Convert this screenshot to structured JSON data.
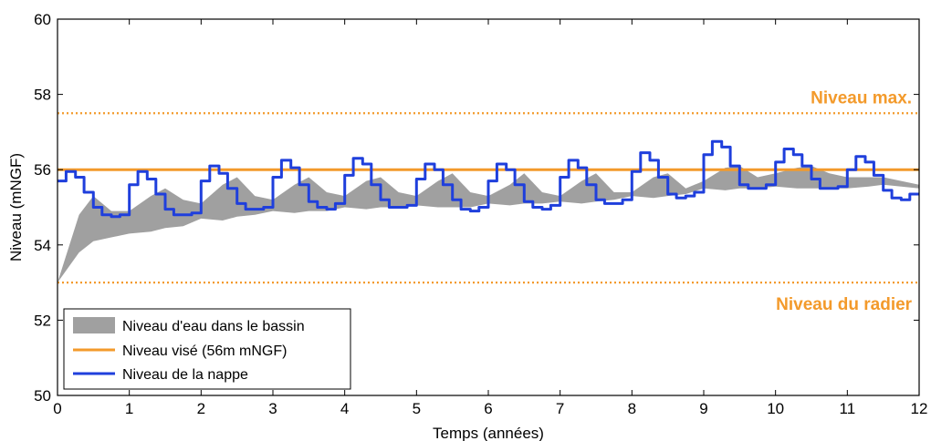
{
  "chart_data": {
    "type": "line",
    "xlabel": "Temps (années)",
    "ylabel": "Niveau (mNGF)",
    "xlim": [
      0,
      12
    ],
    "ylim": [
      50,
      60
    ],
    "xticks": [
      "0",
      "1",
      "2",
      "3",
      "4",
      "5",
      "6",
      "7",
      "8",
      "9",
      "10",
      "11",
      "12"
    ],
    "yticks": [
      "50",
      "52",
      "54",
      "56",
      "58",
      "60"
    ],
    "grid": false,
    "legend_position": "bottom-left",
    "colors": {
      "orange": "#f39a2b",
      "blue": "#1f3fdc",
      "gray": "#a0a0a0"
    },
    "annotations": [
      {
        "text": "Niveau max.",
        "x": 11.95,
        "y": 57.5
      },
      {
        "text": "Niveau du radier",
        "x": 11.95,
        "y": 53.0
      }
    ],
    "reference_lines": [
      {
        "name": "Niveau max.",
        "y": 57.5,
        "style": "dotted"
      },
      {
        "name": "Niveau du radier",
        "y": 53.0,
        "style": "dotted"
      }
    ],
    "series": [
      {
        "name": "Niveau d'eau dans le bassin",
        "type": "band",
        "x": [
          0,
          0.3,
          0.5,
          0.75,
          1,
          1.3,
          1.5,
          1.75,
          2,
          2.3,
          2.5,
          2.75,
          3,
          3.3,
          3.5,
          3.75,
          4,
          4.3,
          4.5,
          4.75,
          5,
          5.3,
          5.5,
          5.75,
          6,
          6.3,
          6.5,
          6.75,
          7,
          7.3,
          7.5,
          7.75,
          8,
          8.3,
          8.5,
          8.75,
          9,
          9.3,
          9.5,
          9.75,
          10,
          10.3,
          10.5,
          10.75,
          11,
          11.3,
          11.5,
          11.75,
          12
        ],
        "lower": [
          53.0,
          53.8,
          54.1,
          54.2,
          54.3,
          54.35,
          54.45,
          54.5,
          54.7,
          54.65,
          54.75,
          54.8,
          54.9,
          54.85,
          54.9,
          54.9,
          55.0,
          54.95,
          55.0,
          55.0,
          55.05,
          55.0,
          55.0,
          55.0,
          55.1,
          55.05,
          55.1,
          55.1,
          55.15,
          55.1,
          55.15,
          55.2,
          55.3,
          55.25,
          55.3,
          55.35,
          55.5,
          55.45,
          55.5,
          55.5,
          55.55,
          55.5,
          55.5,
          55.5,
          55.5,
          55.55,
          55.6,
          55.55,
          55.5
        ],
        "upper": [
          53.0,
          54.8,
          55.3,
          54.9,
          54.9,
          55.3,
          55.5,
          55.2,
          55.1,
          55.6,
          55.8,
          55.3,
          55.2,
          55.6,
          55.8,
          55.4,
          55.3,
          55.7,
          55.8,
          55.4,
          55.3,
          55.7,
          55.9,
          55.4,
          55.3,
          55.6,
          55.9,
          55.4,
          55.3,
          55.7,
          55.9,
          55.4,
          55.4,
          55.8,
          55.9,
          55.5,
          55.7,
          56.05,
          56.1,
          55.8,
          55.9,
          56.05,
          56.1,
          55.9,
          55.8,
          55.8,
          55.8,
          55.7,
          55.6
        ]
      },
      {
        "name": "Niveau visé (56m mNGF)",
        "type": "line",
        "x": [
          0,
          12
        ],
        "y": [
          56,
          56
        ]
      },
      {
        "name": "Niveau de la nappe",
        "type": "step-line",
        "x": [
          0,
          0.12,
          0.12,
          0.25,
          0.25,
          0.37,
          0.37,
          0.5,
          0.5,
          0.62,
          0.62,
          0.75,
          0.75,
          0.87,
          0.87,
          1.0,
          1.0,
          1.12,
          1.12,
          1.25,
          1.25,
          1.37,
          1.37,
          1.5,
          1.5,
          1.62,
          1.62,
          1.75,
          1.75,
          1.87,
          1.87,
          2.0,
          2.0,
          2.12,
          2.12,
          2.25,
          2.25,
          2.37,
          2.37,
          2.5,
          2.5,
          2.62,
          2.62,
          2.75,
          2.75,
          2.87,
          2.87,
          3.0,
          3.0,
          3.12,
          3.12,
          3.25,
          3.25,
          3.37,
          3.37,
          3.5,
          3.5,
          3.62,
          3.62,
          3.75,
          3.75,
          3.87,
          3.87,
          4.0,
          4.0,
          4.12,
          4.12,
          4.25,
          4.25,
          4.37,
          4.37,
          4.5,
          4.5,
          4.62,
          4.62,
          4.75,
          4.75,
          4.87,
          4.87,
          5.0,
          5.0,
          5.12,
          5.12,
          5.25,
          5.25,
          5.37,
          5.37,
          5.5,
          5.5,
          5.62,
          5.62,
          5.75,
          5.75,
          5.87,
          5.87,
          6.0,
          6.0,
          6.12,
          6.12,
          6.25,
          6.25,
          6.37,
          6.37,
          6.5,
          6.5,
          6.62,
          6.62,
          6.75,
          6.75,
          6.87,
          6.87,
          7.0,
          7.0,
          7.12,
          7.12,
          7.25,
          7.25,
          7.37,
          7.37,
          7.5,
          7.5,
          7.62,
          7.62,
          7.75,
          7.75,
          7.87,
          7.87,
          8.0,
          8.0,
          8.12,
          8.12,
          8.25,
          8.25,
          8.37,
          8.37,
          8.5,
          8.5,
          8.62,
          8.62,
          8.75,
          8.75,
          8.87,
          8.87,
          9.0,
          9.0,
          9.12,
          9.12,
          9.25,
          9.25,
          9.37,
          9.37,
          9.5,
          9.5,
          9.62,
          9.62,
          9.75,
          9.75,
          9.87,
          9.87,
          10.0,
          10.0,
          10.12,
          10.12,
          10.25,
          10.25,
          10.37,
          10.37,
          10.5,
          10.5,
          10.62,
          10.62,
          10.75,
          10.75,
          10.87,
          10.87,
          11.0,
          11.0,
          11.12,
          11.12,
          11.25,
          11.25,
          11.37,
          11.37,
          11.5,
          11.5,
          11.62,
          11.62,
          11.75,
          11.75,
          11.87,
          11.87,
          12.0
        ],
        "y": [
          55.7,
          55.7,
          55.95,
          55.95,
          55.8,
          55.8,
          55.4,
          55.4,
          55.0,
          55.0,
          54.8,
          54.8,
          54.75,
          54.75,
          54.8,
          54.8,
          55.6,
          55.6,
          55.95,
          55.95,
          55.75,
          55.75,
          55.35,
          55.35,
          54.95,
          54.95,
          54.8,
          54.8,
          54.8,
          54.8,
          54.85,
          54.85,
          55.7,
          55.7,
          56.1,
          56.1,
          55.9,
          55.9,
          55.5,
          55.5,
          55.1,
          55.1,
          54.95,
          54.95,
          54.95,
          54.95,
          55.0,
          55.0,
          55.8,
          55.8,
          56.25,
          56.25,
          56.05,
          56.05,
          55.6,
          55.6,
          55.15,
          55.15,
          55.0,
          55.0,
          54.95,
          54.95,
          55.1,
          55.1,
          55.85,
          55.85,
          56.3,
          56.3,
          56.15,
          56.15,
          55.6,
          55.6,
          55.2,
          55.2,
          55.0,
          55.0,
          55.0,
          55.0,
          55.05,
          55.05,
          55.75,
          55.75,
          56.15,
          56.15,
          56.0,
          56.0,
          55.6,
          55.6,
          55.2,
          55.2,
          54.95,
          54.95,
          54.9,
          54.9,
          55.0,
          55.0,
          55.7,
          55.7,
          56.15,
          56.15,
          56.0,
          56.0,
          55.6,
          55.6,
          55.15,
          55.15,
          55.0,
          55.0,
          54.95,
          54.95,
          55.05,
          55.05,
          55.8,
          55.8,
          56.25,
          56.25,
          56.05,
          56.05,
          55.6,
          55.6,
          55.2,
          55.2,
          55.1,
          55.1,
          55.1,
          55.1,
          55.2,
          55.2,
          55.95,
          55.95,
          56.45,
          56.45,
          56.25,
          56.25,
          55.8,
          55.8,
          55.35,
          55.35,
          55.25,
          55.25,
          55.3,
          55.3,
          55.4,
          55.4,
          56.4,
          56.4,
          56.75,
          56.75,
          56.6,
          56.6,
          56.1,
          56.1,
          55.6,
          55.6,
          55.5,
          55.5,
          55.5,
          55.5,
          55.6,
          55.6,
          56.2,
          56.2,
          56.55,
          56.55,
          56.4,
          56.4,
          56.1,
          56.1,
          55.75,
          55.75,
          55.5,
          55.5,
          55.5,
          55.5,
          55.55,
          55.55,
          56.0,
          56.0,
          56.35,
          56.35,
          56.2,
          56.2,
          55.85,
          55.85,
          55.45,
          55.45,
          55.25,
          55.25,
          55.2,
          55.2,
          55.35,
          55.35
        ]
      }
    ]
  }
}
